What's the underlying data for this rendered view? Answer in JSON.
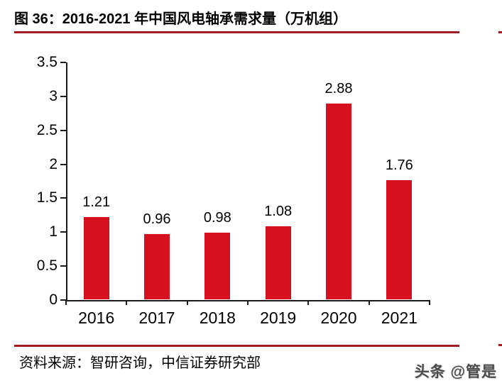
{
  "header": {
    "title": "图 36：2016-2021 年中国风电轴承需求量（万机组）"
  },
  "chart_data": {
    "type": "bar",
    "title": "图 36：2016-2021 年中国风电轴承需求量（万机组）",
    "categories": [
      "2016",
      "2017",
      "2018",
      "2019",
      "2020",
      "2021"
    ],
    "values": [
      1.21,
      0.96,
      0.98,
      1.08,
      2.88,
      1.76
    ],
    "value_labels": [
      "1.21",
      "0.96",
      "0.98",
      "1.08",
      "2.88",
      "1.76"
    ],
    "xlabel": "",
    "ylabel": "",
    "ylim": [
      0,
      3.5
    ],
    "ytick_step": 0.5,
    "ytick_labels": [
      "0",
      "0.5",
      "1",
      "1.5",
      "2",
      "2.5",
      "3",
      "3.5"
    ],
    "grid": false,
    "legend": null,
    "bar_color": "#d7101f",
    "axis_color": "#1a1a1a"
  },
  "footer": {
    "source": "资料来源：智研咨询，中信证券研究部"
  },
  "watermark": {
    "text": "头条 @管是"
  },
  "colors": {
    "rule_red": "#9f1d20",
    "bar_red": "#d7101f"
  }
}
